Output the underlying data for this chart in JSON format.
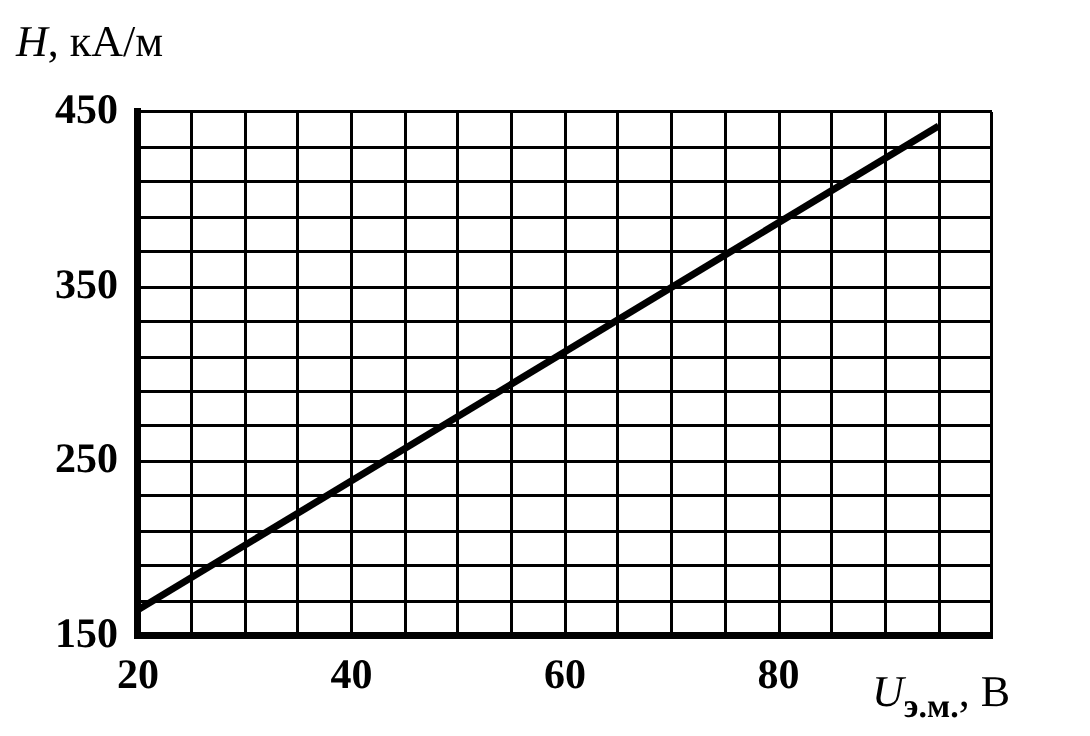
{
  "chart_data": {
    "type": "line",
    "xlabel": "U$_{э.м.}$, В",
    "ylabel": "H, кА/м",
    "x": [
      20,
      95
    ],
    "series": [
      {
        "color": "#000000",
        "values": [
          165,
          442
        ]
      }
    ],
    "xlim": [
      20,
      100
    ],
    "xticks": [
      20,
      {
        "value": 25,
        "label": null
      },
      {
        "value": 30,
        "label": null
      },
      {
        "value": 35,
        "label": null
      },
      40,
      {
        "value": 45,
        "label": null
      },
      {
        "value": 50,
        "label": null
      },
      {
        "value": 55,
        "label": null
      },
      60,
      {
        "value": 65,
        "label": null
      },
      {
        "value": 70,
        "label": null
      },
      {
        "value": 75,
        "label": null
      },
      80,
      {
        "value": 85,
        "label": null
      },
      {
        "value": 90,
        "label": null
      },
      {
        "value": 95,
        "label": null
      },
      {
        "value": 100,
        "label": null
      }
    ],
    "ylim": [
      150,
      450
    ],
    "yticks": [
      150,
      {
        "value": 170,
        "label": null
      },
      {
        "value": 190,
        "label": null
      },
      {
        "value": 210,
        "label": null
      },
      {
        "value": 230,
        "label": null
      },
      250,
      {
        "value": 270,
        "label": null
      },
      {
        "value": 290,
        "label": null
      },
      {
        "value": 310,
        "label": null
      },
      {
        "value": 330,
        "label": null
      },
      350,
      {
        "value": 370,
        "label": null
      },
      {
        "value": 390,
        "label": null
      },
      {
        "value": 410,
        "label": null
      },
      {
        "value": 430,
        "label": null
      },
      450
    ],
    "grid": true,
    "legend": false,
    "marker": "none",
    "line_style": "solid"
  }
}
